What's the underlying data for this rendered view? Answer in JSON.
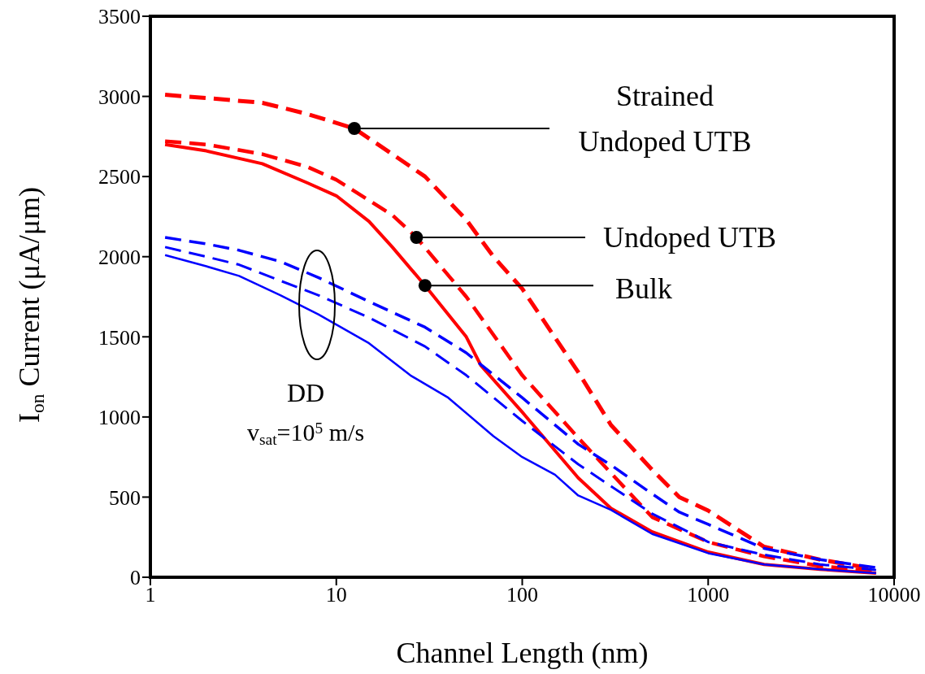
{
  "chart_data": {
    "type": "line",
    "xlabel": "Channel Length (nm)",
    "ylabel": "I$_{on}$ Current (μA/μm)",
    "log": "x",
    "xlim": [
      1,
      10000
    ],
    "xticks": [
      1,
      10,
      100,
      1000,
      10000
    ],
    "ylim": [
      0,
      3500
    ],
    "yticks": [
      0,
      500,
      1000,
      1500,
      2000,
      2500,
      3000,
      3500
    ],
    "grid": false,
    "legend": false,
    "series": [
      {
        "color": "#ff0000",
        "line_style": "dashed",
        "x": [
          1.2,
          2,
          4,
          7,
          12.5,
          20,
          30,
          50,
          70,
          100,
          200,
          300,
          500,
          700,
          1000,
          2000,
          4000,
          8000
        ],
        "values": [
          3010,
          2990,
          2960,
          2890,
          2800,
          2640,
          2500,
          2230,
          2000,
          1800,
          1280,
          950,
          670,
          500,
          416,
          190,
          110,
          50
        ]
      },
      {
        "color": "#ff0000",
        "line_style": "dashed",
        "x": [
          1.2,
          2,
          4,
          7,
          10,
          20,
          27,
          50,
          100,
          200,
          300,
          500,
          1000,
          2000,
          4000,
          8000
        ],
        "values": [
          2720,
          2700,
          2640,
          2560,
          2480,
          2260,
          2120,
          1750,
          1260,
          870,
          650,
          375,
          220,
          130,
          70,
          35
        ]
      },
      {
        "color": "#ff0000",
        "line_style": "solid",
        "x": [
          1.2,
          2,
          4,
          7,
          10,
          15,
          20,
          30,
          50,
          60,
          100,
          200,
          300,
          500,
          1000,
          2000,
          4000,
          8000
        ],
        "values": [
          2700,
          2660,
          2580,
          2460,
          2380,
          2220,
          2060,
          1820,
          1500,
          1320,
          1030,
          620,
          430,
          283,
          157,
          80,
          50,
          25
        ]
      },
      {
        "color": "#0000ff",
        "line_style": "dashed",
        "x": [
          1.2,
          2,
          3,
          5,
          8,
          15,
          30,
          50,
          100,
          200,
          300,
          500,
          700,
          1000,
          2000,
          4000,
          8000
        ],
        "values": [
          2120,
          2080,
          2040,
          1970,
          1870,
          1720,
          1560,
          1400,
          1120,
          830,
          700,
          520,
          406,
          330,
          180,
          110,
          60
        ]
      },
      {
        "color": "#0000ff",
        "line_style": "dashed",
        "x": [
          1.2,
          2,
          3,
          5,
          8,
          15,
          30,
          50,
          100,
          200,
          500,
          1000,
          2000,
          4000,
          8000
        ],
        "values": [
          2060,
          2000,
          1950,
          1850,
          1760,
          1620,
          1440,
          1260,
          975,
          705,
          396,
          220,
          140,
          80,
          45
        ]
      },
      {
        "color": "#0000ff",
        "line_style": "solid",
        "x": [
          1.2,
          2,
          3,
          5,
          8,
          15,
          25,
          40,
          70,
          100,
          150,
          200,
          300,
          500,
          1000,
          2000,
          4000,
          8000
        ],
        "values": [
          2010,
          1940,
          1880,
          1760,
          1640,
          1460,
          1260,
          1120,
          880,
          750,
          640,
          510,
          420,
          270,
          150,
          80,
          50,
          25
        ]
      }
    ],
    "annotations": [
      {
        "text": "Strained Undoped UTB",
        "x": 12.5,
        "y": 2800
      },
      {
        "text": "Undoped UTB",
        "x": 27,
        "y": 2120
      },
      {
        "text": "Bulk",
        "x": 30,
        "y": 1820
      },
      "DD",
      "v$_{sat}$=10$^{5}$ m/s"
    ]
  }
}
